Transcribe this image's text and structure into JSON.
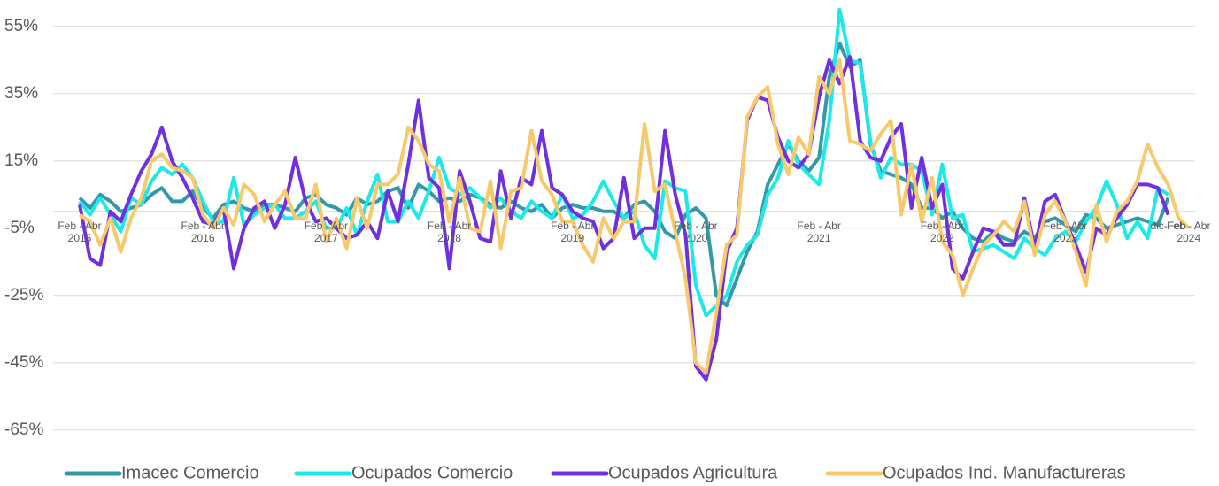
{
  "chart_data": {
    "type": "line",
    "categories": [
      "Feb - Abr\n2015",
      null,
      null,
      null,
      null,
      null,
      null,
      null,
      null,
      null,
      null,
      null,
      "Feb - Abr\n2016",
      null,
      null,
      null,
      null,
      null,
      null,
      null,
      null,
      null,
      null,
      null,
      "Feb - Abr\n2017",
      null,
      null,
      null,
      null,
      null,
      null,
      null,
      null,
      null,
      null,
      null,
      "Feb - Abr\n2018",
      null,
      null,
      null,
      null,
      null,
      null,
      null,
      null,
      null,
      null,
      null,
      "Feb - Abr\n2019",
      null,
      null,
      null,
      null,
      null,
      null,
      null,
      null,
      null,
      null,
      null,
      "Feb - Abr\n2020",
      null,
      null,
      null,
      null,
      null,
      null,
      null,
      null,
      null,
      null,
      null,
      "Feb - Abr\n2021",
      null,
      null,
      null,
      null,
      null,
      null,
      null,
      null,
      null,
      null,
      null,
      "Feb - Abr\n2022",
      null,
      null,
      null,
      null,
      null,
      null,
      null,
      null,
      null,
      null,
      null,
      "Feb - Abr\n2023",
      null,
      null,
      null,
      null,
      null,
      null,
      null,
      null,
      null,
      "dic-Feb",
      null,
      "Feb - Abr\n2024"
    ],
    "series": [
      {
        "name": "Imacec Comercio",
        "color": "#3399aa",
        "values": [
          4,
          1,
          5,
          3,
          0,
          1,
          2,
          5,
          7,
          3,
          3,
          6,
          1,
          -2,
          2,
          3,
          1,
          0,
          2,
          2,
          1,
          0,
          4,
          5,
          2,
          1,
          -1,
          4,
          2,
          3,
          6,
          7,
          1,
          8,
          6,
          3,
          4,
          3,
          5,
          4,
          2,
          1,
          3,
          1,
          0,
          2,
          -2,
          1,
          2,
          1,
          1,
          0,
          0,
          -2,
          2,
          3,
          0,
          -6,
          -8,
          -1,
          1,
          -2,
          -25,
          -28,
          -20,
          -12,
          -6,
          8,
          14,
          20,
          15,
          12,
          16,
          40,
          50,
          43,
          45,
          20,
          12,
          11,
          10,
          8,
          1,
          1,
          -2,
          0,
          -5,
          -8,
          -9,
          -6,
          -8,
          -9,
          -6,
          -8,
          -3,
          -2,
          -4,
          -6,
          -1,
          -2,
          -5,
          -4,
          -3,
          -2,
          -3,
          -4,
          4,
          null,
          null
        ]
      },
      {
        "name": "Ocupados Comercio",
        "color": "#1de9e9",
        "values": [
          3,
          -1,
          4,
          -1,
          -6,
          4,
          2,
          9,
          13,
          11,
          14,
          10,
          3,
          -3,
          -3,
          10,
          -4,
          -1,
          1,
          2,
          -2,
          -2,
          0,
          3,
          -5,
          -5,
          1,
          -7,
          3,
          11,
          -3,
          -3,
          3,
          -2,
          6,
          16,
          7,
          5,
          7,
          4,
          1,
          4,
          0,
          -2,
          3,
          0,
          -2,
          5,
          -2,
          -1,
          3,
          9,
          3,
          -2,
          0,
          -10,
          -14,
          9,
          7,
          6,
          -22,
          -31,
          -28,
          -25,
          -15,
          -10,
          -7,
          5,
          10,
          21,
          14,
          11,
          8,
          27,
          60,
          45,
          44,
          21,
          10,
          16,
          14,
          14,
          12,
          -1,
          14,
          -2,
          -1,
          -12,
          -11,
          -10,
          -12,
          -14,
          -8,
          -11,
          -13,
          -8,
          -6,
          -9,
          -3,
          1,
          9,
          2,
          -8,
          -3,
          -8,
          7,
          5,
          null,
          null
        ]
      },
      {
        "name": "Ocupados Agricultura",
        "color": "#7130e0",
        "values": [
          2,
          -14,
          -16,
          0,
          -3,
          5,
          12,
          17,
          25,
          15,
          10,
          4,
          -3,
          -4,
          1,
          -17,
          -5,
          1,
          3,
          -5,
          2,
          16,
          3,
          -3,
          -2,
          -5,
          -8,
          -7,
          -3,
          -8,
          6,
          -3,
          14,
          33,
          10,
          7,
          -17,
          12,
          3,
          -8,
          -9,
          12,
          -2,
          10,
          8,
          24,
          7,
          5,
          0,
          -2,
          -3,
          -11,
          -8,
          10,
          -8,
          -5,
          -5,
          24,
          5,
          -7,
          -46,
          -50,
          -38,
          -12,
          -5,
          27,
          34,
          33,
          22,
          15,
          13,
          17,
          34,
          45,
          38,
          46,
          21,
          16,
          15,
          22,
          26,
          1,
          16,
          1,
          8,
          -17,
          -20,
          -12,
          -5,
          -6,
          -10,
          -10,
          4,
          -11,
          3,
          5,
          -3,
          -10,
          -18,
          -5,
          -7,
          -2,
          2,
          8,
          8,
          7,
          -1,
          null,
          null
        ]
      },
      {
        "name": "Ocupados Ind. Manufactureras",
        "color": "#f7c96b",
        "values": [
          -1,
          -3,
          -10,
          -2,
          -12,
          -2,
          4,
          15,
          17,
          13,
          12,
          10,
          -1,
          -5,
          1,
          -4,
          8,
          5,
          -3,
          2,
          6,
          -2,
          -2,
          8,
          -9,
          -2,
          -11,
          4,
          -5,
          8,
          8,
          11,
          25,
          21,
          14,
          12,
          -3,
          10,
          -5,
          -6,
          9,
          -11,
          6,
          7,
          24,
          9,
          5,
          -3,
          -3,
          -10,
          -15,
          -2,
          -8,
          -3,
          -3,
          26,
          6,
          8,
          -6,
          -20,
          -45,
          -48,
          -30,
          -10,
          -7,
          28,
          34,
          37,
          20,
          11,
          22,
          17,
          40,
          35,
          45,
          21,
          20,
          18,
          23,
          27,
          -1,
          14,
          -3,
          10,
          -9,
          -13,
          -25,
          -17,
          -10,
          -7,
          -3,
          -6,
          3,
          -13,
          -1,
          3,
          -3,
          -12,
          -22,
          2,
          -9,
          0,
          3,
          9,
          20,
          13,
          8,
          -2,
          -5
        ]
      }
    ],
    "ylim": [
      -71,
      61
    ],
    "yticks": [
      {
        "value": -65,
        "label": "-65%"
      },
      {
        "value": -45,
        "label": "-45%"
      },
      {
        "value": -25,
        "label": "-25%"
      },
      {
        "value": -5,
        "label": "-5%"
      },
      {
        "value": 15,
        "label": "15%"
      },
      {
        "value": 35,
        "label": "35%"
      },
      {
        "value": 55,
        "label": "55%"
      }
    ],
    "grid": true
  }
}
